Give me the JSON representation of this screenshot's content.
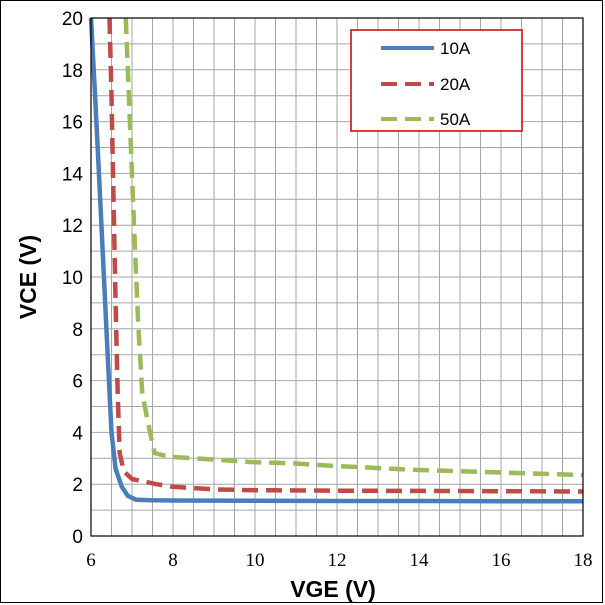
{
  "chart_data": {
    "type": "line",
    "title": "",
    "xlabel": "VGE  (V)",
    "ylabel": "VCE  (V)",
    "xlim": [
      6,
      18
    ],
    "ylim": [
      0,
      20
    ],
    "x_major_ticks": [
      6,
      8,
      10,
      12,
      14,
      16,
      18
    ],
    "y_major_ticks": [
      0,
      2,
      4,
      6,
      8,
      10,
      12,
      14,
      16,
      18,
      20
    ],
    "grid": true,
    "legend_position": "top-right",
    "series": [
      {
        "name": "10A",
        "color": "#4a7ebb",
        "style": "solid",
        "x": [
          6.0,
          6.1,
          6.2,
          6.3,
          6.4,
          6.5,
          6.6,
          6.75,
          6.9,
          7.1,
          7.5,
          8,
          10,
          12,
          14,
          16,
          18
        ],
        "y": [
          20.0,
          17.0,
          13.8,
          10.5,
          7.2,
          4.0,
          2.6,
          1.9,
          1.55,
          1.4,
          1.38,
          1.37,
          1.36,
          1.35,
          1.35,
          1.34,
          1.34
        ]
      },
      {
        "name": "20A",
        "color": "#be4b48",
        "style": "dashed",
        "x": [
          6.45,
          6.5,
          6.55,
          6.6,
          6.65,
          6.7,
          6.8,
          7.0,
          7.3,
          7.6,
          8,
          9,
          10,
          12,
          14,
          16,
          18
        ],
        "y": [
          20.0,
          17.0,
          13.0,
          9.0,
          5.5,
          3.2,
          2.5,
          2.2,
          2.1,
          2.0,
          1.9,
          1.8,
          1.77,
          1.75,
          1.74,
          1.73,
          1.72
        ]
      },
      {
        "name": "50A",
        "color": "#9bbb59",
        "style": "dashed",
        "x": [
          6.85,
          6.95,
          7.05,
          7.15,
          7.25,
          7.4,
          7.55,
          7.8,
          8,
          9,
          10,
          11,
          12,
          14,
          16,
          18
        ],
        "y": [
          20.0,
          16.0,
          12.0,
          8.2,
          5.5,
          4.3,
          3.2,
          3.1,
          3.05,
          2.95,
          2.85,
          2.8,
          2.7,
          2.55,
          2.45,
          2.35
        ]
      }
    ]
  }
}
